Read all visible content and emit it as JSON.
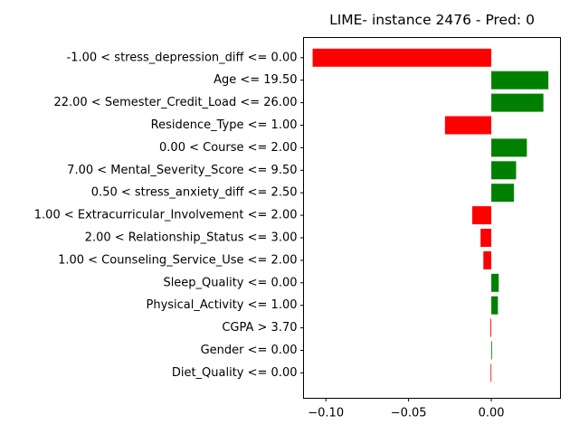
{
  "chart_data": {
    "type": "bar",
    "orientation": "horizontal",
    "title": "LIME- instance 2476 - Pred: 0",
    "xlabel": "",
    "ylabel": "",
    "xlim": [
      -0.1135,
      0.0418
    ],
    "xticks": [
      -0.1,
      -0.05,
      0.0
    ],
    "xtick_labels": [
      "−0.10",
      "−0.05",
      "0.00"
    ],
    "grid": false,
    "legend": "none",
    "colors": {
      "positive": "#008000",
      "negative": "#ff0000"
    },
    "categories": [
      "-1.00 < stress_depression_diff <= 0.00",
      "Age <= 19.50",
      "22.00 < Semester_Credit_Load <= 26.00",
      "Residence_Type <= 1.00",
      "0.00 < Course <= 2.00",
      "7.00 < Mental_Severity_Score <= 9.50",
      "0.50 < stress_anxiety_diff <= 2.50",
      "1.00 < Extracurricular_Involvement <= 2.00",
      "2.00 < Relationship_Status <= 3.00",
      "1.00 < Counseling_Service_Use <= 2.00",
      "Sleep_Quality <= 0.00",
      "Physical_Activity <= 1.00",
      "CGPA > 3.70",
      "Gender <= 0.00",
      "Diet_Quality <= 0.00"
    ],
    "values": [
      -0.108,
      0.0345,
      0.0315,
      -0.028,
      0.0215,
      0.015,
      0.0137,
      -0.0115,
      -0.0065,
      -0.0048,
      0.0045,
      0.004,
      -0.0005,
      0.0003,
      -0.0004
    ]
  }
}
